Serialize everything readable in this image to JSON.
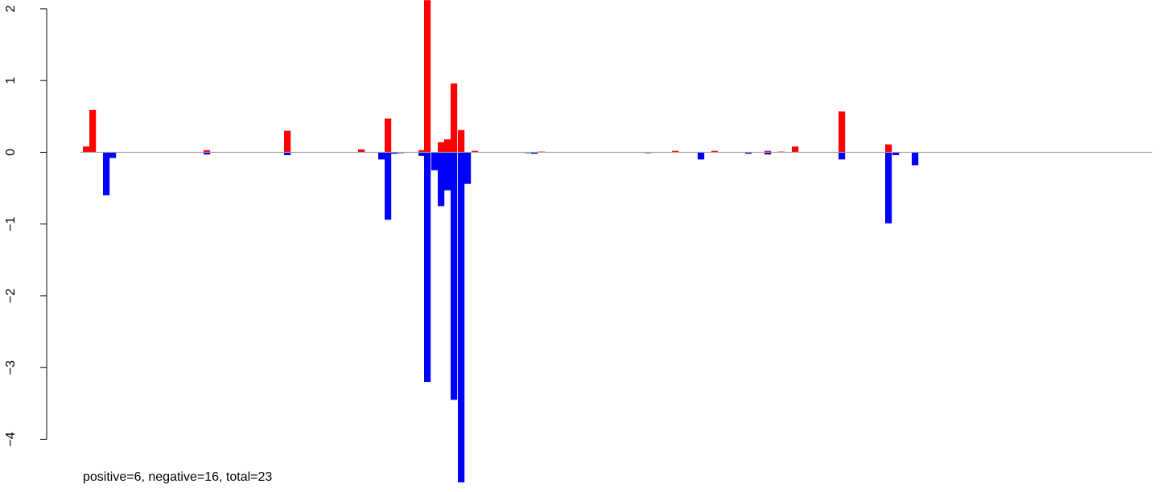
{
  "chart_data": {
    "type": "bar",
    "title": "",
    "xlabel": "",
    "ylabel": "",
    "ylim": [
      -4.6,
      2.1
    ],
    "y_ticks": [
      -4,
      -3,
      -2,
      -1,
      0,
      1,
      2
    ],
    "x_domain": [
      0,
      1330
    ],
    "grid": false,
    "legend": "none",
    "colors": {
      "positive": "#ff0000",
      "negative": "#0000ff",
      "baseline": "#a0a0a0"
    },
    "series": [
      {
        "name": "positive",
        "values": [
          {
            "x": 0,
            "value": 0.08
          },
          {
            "x": 8,
            "value": 0.59
          },
          {
            "x": 150,
            "value": 0.03
          },
          {
            "x": 250,
            "value": 0.3
          },
          {
            "x": 342,
            "value": 0.04
          },
          {
            "x": 375,
            "value": 0.47
          },
          {
            "x": 417,
            "value": 0.03
          },
          {
            "x": 424,
            "value": 2.12
          },
          {
            "x": 441,
            "value": 0.14
          },
          {
            "x": 449,
            "value": 0.18
          },
          {
            "x": 457,
            "value": 0.96
          },
          {
            "x": 466,
            "value": 0.31
          },
          {
            "x": 483,
            "value": 0.02
          },
          {
            "x": 566,
            "value": 0.01
          },
          {
            "x": 732,
            "value": 0.02
          },
          {
            "x": 781,
            "value": 0.02
          },
          {
            "x": 847,
            "value": 0.02
          },
          {
            "x": 864,
            "value": 0.01
          },
          {
            "x": 881,
            "value": 0.08
          },
          {
            "x": 939,
            "value": 0.57
          },
          {
            "x": 997,
            "value": 0.11
          }
        ]
      },
      {
        "name": "negative",
        "values": [
          {
            "x": 25,
            "value": -0.6
          },
          {
            "x": 33,
            "value": -0.08
          },
          {
            "x": 150,
            "value": -0.03
          },
          {
            "x": 250,
            "value": -0.04
          },
          {
            "x": 367,
            "value": -0.1
          },
          {
            "x": 375,
            "value": -0.94
          },
          {
            "x": 383,
            "value": -0.02
          },
          {
            "x": 391,
            "value": -0.01
          },
          {
            "x": 417,
            "value": -0.05
          },
          {
            "x": 424,
            "value": -3.2
          },
          {
            "x": 433,
            "value": -0.25
          },
          {
            "x": 441,
            "value": -0.75
          },
          {
            "x": 449,
            "value": -0.53
          },
          {
            "x": 457,
            "value": -3.45
          },
          {
            "x": 466,
            "value": -4.6
          },
          {
            "x": 474,
            "value": -0.44
          },
          {
            "x": 549,
            "value": -0.01
          },
          {
            "x": 557,
            "value": -0.02
          },
          {
            "x": 698,
            "value": -0.01
          },
          {
            "x": 764,
            "value": -0.1
          },
          {
            "x": 823,
            "value": -0.02
          },
          {
            "x": 847,
            "value": -0.03
          },
          {
            "x": 939,
            "value": -0.1
          },
          {
            "x": 997,
            "value": -0.99
          },
          {
            "x": 1006,
            "value": -0.04
          },
          {
            "x": 1030,
            "value": -0.18
          }
        ]
      }
    ]
  },
  "footnote": "positive=6, negative=16, total=23"
}
